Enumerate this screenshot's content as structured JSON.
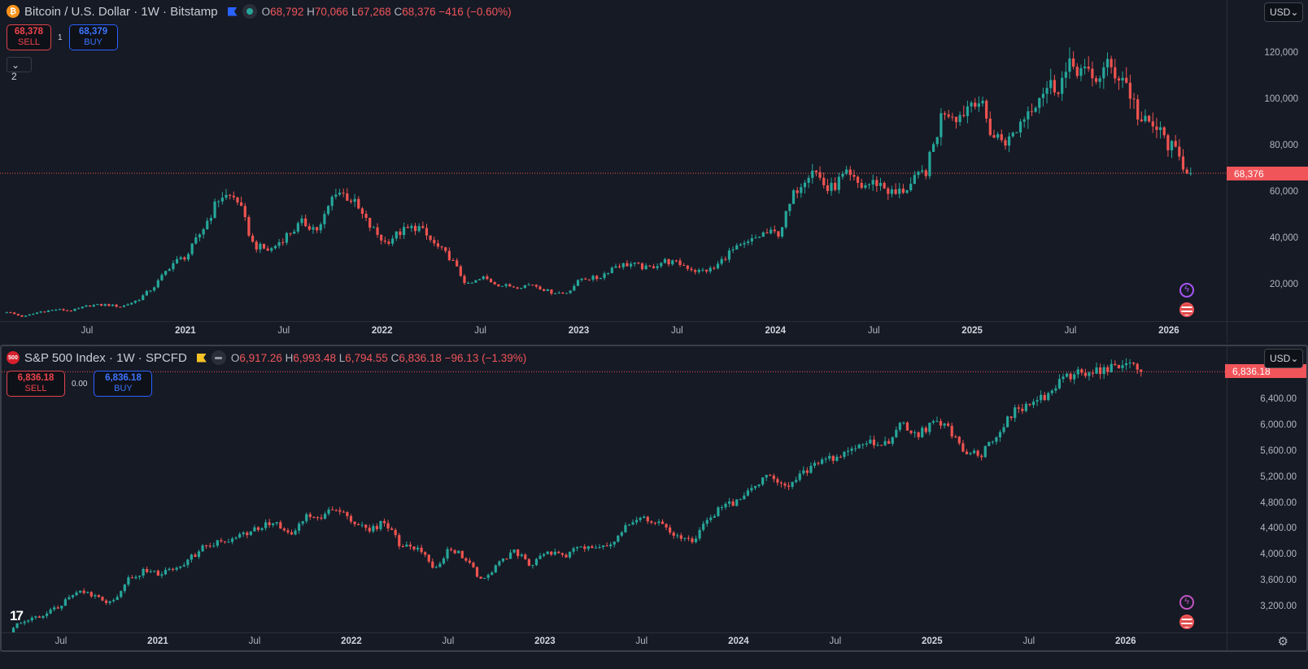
{
  "top": {
    "symbol": "Bitcoin / U.S. Dollar · 1W · Bitstamp",
    "ohlc": {
      "o_label": "O",
      "o": "68,792",
      "h_label": "H",
      "h": "70,066",
      "l_label": "L",
      "l": "67,268",
      "c_label": "C",
      "c": "68,376",
      "change": "−416 (−0.60%)"
    },
    "sell_price": "68,378",
    "sell_label": "SELL",
    "spread": "1",
    "buy_price": "68,379",
    "buy_label": "BUY",
    "indicators_toggle": "2",
    "currency": "USD",
    "last_price": "68,376"
  },
  "bottom": {
    "symbol": "S&P 500 Index · 1W · SPCFD",
    "logo_text": "500",
    "ohlc": {
      "o_label": "O",
      "o": "6,917.26",
      "h_label": "H",
      "h": "6,993.48",
      "l_label": "L",
      "l": "6,794.55",
      "c_label": "C",
      "c": "6,836.18",
      "change": "−96.13 (−1.39%)"
    },
    "sell_price": "6,836.18",
    "sell_label": "SELL",
    "spread": "0.00",
    "buy_price": "6,836.18",
    "buy_label": "BUY",
    "currency": "USD",
    "last_price": "6,836.18"
  },
  "colors": {
    "up": "#26a69a",
    "down": "#ef5350",
    "bg": "#161a25"
  },
  "chart_data": [
    {
      "type": "candlestick",
      "title": "Bitcoin / U.S. Dollar · 1W · Bitstamp",
      "start": "2020-02",
      "monthly_close": [
        8600,
        6400,
        8600,
        9500,
        9100,
        11300,
        11600,
        10800,
        13800,
        19700,
        29000,
        33100,
        45200,
        58800,
        57700,
        37300,
        35000,
        41500,
        47100,
        43800,
        61300,
        57000,
        46200,
        38500,
        43200,
        45500,
        37700,
        31800,
        19900,
        23300,
        20000,
        19400,
        20500,
        17200,
        16500,
        23100,
        23100,
        28500,
        29200,
        27200,
        30500,
        29200,
        26000,
        27000,
        34500,
        37700,
        42300,
        42600,
        61200,
        71300,
        60600,
        67500,
        62700,
        64600,
        58900,
        63300,
        70300,
        96400,
        93400,
        102400,
        84300,
        82500,
        94200,
        104600,
        107100,
        115700,
        108200,
        114000,
        109500,
        90500,
        87500,
        78000,
        68376
      ],
      "y_ticks": [
        "120,000",
        "100,000",
        "80,000",
        "60,000",
        "40,000",
        "20,000"
      ],
      "y_tick_values": [
        120000,
        100000,
        80000,
        60000,
        40000,
        20000
      ],
      "x_ticks": [
        "Jul",
        "2021",
        "Jul",
        "2022",
        "Jul",
        "2023",
        "Jul",
        "2024",
        "Jul",
        "2025",
        "Jul",
        "2026"
      ]
    },
    {
      "type": "candlestick",
      "title": "S&P 500 Index · 1W · SPCFD",
      "start": "2020-03",
      "monthly_close": [
        2585,
        2912,
        3044,
        3100,
        3271,
        3500,
        3363,
        3270,
        3622,
        3756,
        3714,
        3811,
        3973,
        4181,
        4204,
        4298,
        4395,
        4523,
        4308,
        4605,
        4567,
        4766,
        4516,
        4374,
        4530,
        4132,
        4132,
        3785,
        4130,
        3955,
        3586,
        3872,
        4080,
        3840,
        4077,
        3970,
        4109,
        4169,
        4180,
        4450,
        4589,
        4508,
        4288,
        4194,
        4568,
        4770,
        4846,
        5096,
        5254,
        5036,
        5278,
        5460,
        5522,
        5648,
        5762,
        5705,
        6032,
        5882,
        6040,
        5955,
        5612,
        5569,
        5912,
        6205,
        6339,
        6460,
        6688,
        6840,
        6849,
        6900,
        6940,
        6836.18
      ],
      "y_ticks": [
        "6,400.00",
        "6,000.00",
        "5,600.00",
        "5,200.00",
        "4,800.00",
        "4,400.00",
        "4,000.00",
        "3,600.00",
        "3,200.00"
      ],
      "y_tick_values": [
        6400,
        6000,
        5600,
        5200,
        4800,
        4400,
        4000,
        3600,
        3200
      ],
      "x_ticks": [
        "Jul",
        "2021",
        "Jul",
        "2022",
        "Jul",
        "2023",
        "Jul",
        "2024",
        "Jul",
        "2025",
        "Jul",
        "2026"
      ]
    }
  ]
}
